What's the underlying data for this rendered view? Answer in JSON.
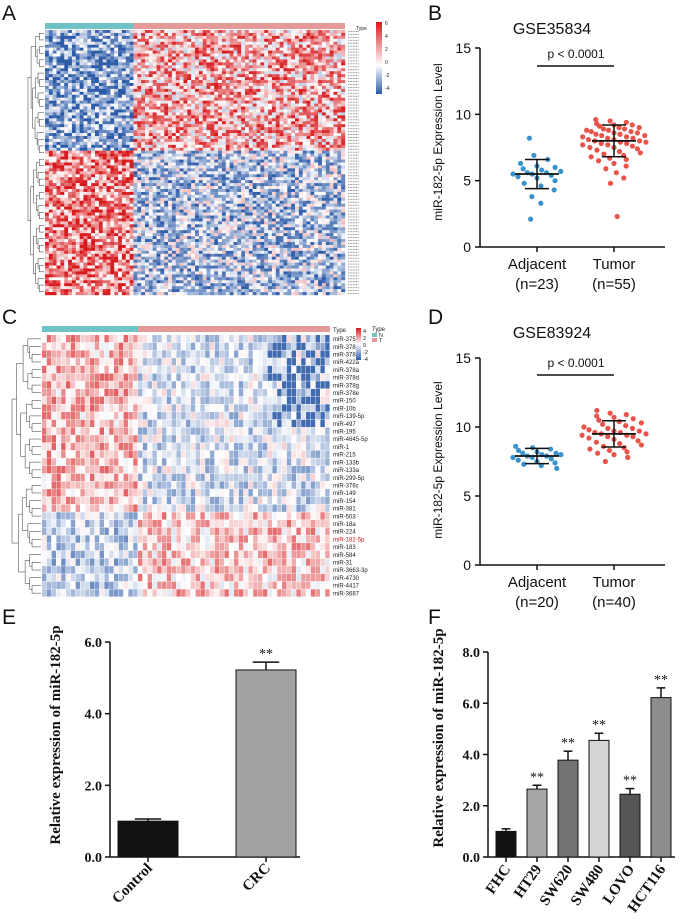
{
  "panel_labels": {
    "a": "A",
    "b": "B",
    "c": "C",
    "d": "D",
    "e": "E",
    "f": "F"
  },
  "colors": {
    "heat_high": "#d7191c",
    "heat_mid": "#ffffff",
    "heat_low": "#2b5aa8",
    "group_normal": "#6fc3c6",
    "group_tumor": "#e59a9a",
    "dot_adjacent": "#3a92cc",
    "dot_tumor": "#e8534a",
    "bar_black": "#111111",
    "highlight_gene": "#d7191c"
  },
  "heatmap_a": {
    "legend_title": "Type",
    "scale_ticks": [
      "6",
      "4",
      "2",
      "0",
      "-2",
      "-4"
    ],
    "n_rows": 90,
    "n_normal": 23,
    "n_tumor": 55
  },
  "heatmap_c": {
    "legend_title": "Type",
    "scale_ticks": [
      "4",
      "2",
      "0",
      "-2",
      "-4"
    ],
    "group_legend_title": "Type",
    "group_legend": [
      "N",
      "T"
    ],
    "n_normal": 20,
    "n_tumor": 40,
    "genes": [
      "miR-375",
      "miR-378f",
      "miR-378i",
      "miR-422a",
      "miR-378a",
      "miR-378d",
      "miR-378g",
      "miR-378e",
      "miR-150",
      "miR-10b",
      "miR-139-5p",
      "miR-497",
      "miR-195",
      "miR-4645-5p",
      "miR-1",
      "miR-215",
      "miR-133b",
      "miR-133a",
      "miR-299-5p",
      "miR-376c",
      "miR-149",
      "miR-154",
      "miR-381",
      "miR-503",
      "miR-18a",
      "miR-224",
      "miR-182-5p",
      "miR-183",
      "miR-584",
      "miR-31",
      "miR-3663-3p",
      "miR-4730",
      "miR-4417",
      "miR-3687"
    ],
    "highlight_gene": "miR-182-5p"
  },
  "chart_data": [
    {
      "id": "B",
      "type": "scatter",
      "title": "GSE35834",
      "ylabel": "miR-182-5p Expression Level",
      "ylim": [
        0,
        15
      ],
      "yticks": [
        "0",
        "5",
        "10",
        "15"
      ],
      "categories": [
        "Adjacent",
        "Tumor"
      ],
      "category_n": [
        "(n=23)",
        "(n=55)"
      ],
      "significance": "p < 0.0001",
      "series": [
        {
          "name": "Adjacent",
          "mean": 5.5,
          "sd": 1.1,
          "values": [
            8.2,
            6.9,
            6.6,
            6.3,
            6.1,
            6.0,
            5.9,
            5.8,
            5.7,
            5.6,
            5.6,
            5.5,
            5.5,
            5.4,
            5.3,
            5.2,
            5.0,
            4.8,
            4.6,
            4.3,
            3.8,
            3.3,
            2.1
          ]
        },
        {
          "name": "Tumor",
          "mean": 8.0,
          "sd": 1.2,
          "values": [
            9.6,
            9.5,
            9.4,
            9.3,
            9.2,
            9.2,
            9.1,
            9.0,
            9.0,
            8.9,
            8.9,
            8.8,
            8.8,
            8.7,
            8.7,
            8.6,
            8.6,
            8.5,
            8.5,
            8.4,
            8.4,
            8.3,
            8.3,
            8.2,
            8.2,
            8.1,
            8.1,
            8.0,
            8.0,
            7.9,
            7.9,
            7.8,
            7.8,
            7.7,
            7.7,
            7.6,
            7.5,
            7.5,
            7.4,
            7.3,
            7.2,
            7.1,
            7.0,
            6.9,
            6.8,
            6.7,
            6.6,
            6.5,
            6.3,
            6.1,
            5.9,
            5.6,
            5.2,
            4.8,
            2.3
          ]
        }
      ]
    },
    {
      "id": "D",
      "type": "scatter",
      "title": "GSE83924",
      "ylabel": "miR-182-5p Expression Level",
      "ylim": [
        0,
        15
      ],
      "yticks": [
        "0",
        "5",
        "10",
        "15"
      ],
      "categories": [
        "Adjacent",
        "Tumor"
      ],
      "category_n": [
        "(n=20)",
        "(n=40)"
      ],
      "significance": "p < 0.0001",
      "series": [
        {
          "name": "Adjacent",
          "mean": 7.9,
          "sd": 0.55,
          "values": [
            8.6,
            8.5,
            8.4,
            8.3,
            8.2,
            8.1,
            8.1,
            8.0,
            8.0,
            7.9,
            7.9,
            7.8,
            7.8,
            7.7,
            7.6,
            7.5,
            7.4,
            7.3,
            7.2,
            7.0
          ]
        },
        {
          "name": "Tumor",
          "mean": 9.5,
          "sd": 0.95,
          "values": [
            11.2,
            11.0,
            10.9,
            10.8,
            10.7,
            10.6,
            10.5,
            10.4,
            10.3,
            10.2,
            10.1,
            10.0,
            9.9,
            9.9,
            9.8,
            9.7,
            9.7,
            9.6,
            9.6,
            9.5,
            9.5,
            9.4,
            9.4,
            9.3,
            9.3,
            9.2,
            9.1,
            9.0,
            8.9,
            8.8,
            8.7,
            8.6,
            8.5,
            8.4,
            8.3,
            8.2,
            8.1,
            8.0,
            7.8,
            7.5
          ]
        }
      ]
    },
    {
      "id": "E",
      "type": "bar",
      "ylabel": "Relative expression of miR-182-5p",
      "ylim": [
        0,
        6
      ],
      "yticks": [
        "0.0",
        "2.0",
        "4.0",
        "6.0"
      ],
      "categories": [
        "Control",
        "CRC"
      ],
      "values": [
        1.0,
        5.22
      ],
      "errors": [
        0.06,
        0.22
      ],
      "bar_colors": [
        "#111111",
        "#a3a3a3"
      ],
      "annotations": [
        "",
        "**"
      ]
    },
    {
      "id": "F",
      "type": "bar",
      "ylabel": "Relative expression of miR-182-5p",
      "ylim": [
        0,
        8
      ],
      "yticks": [
        "0.0",
        "2.0",
        "4.0",
        "6.0",
        "8.0"
      ],
      "categories": [
        "FHC",
        "HT29",
        "SW620",
        "SW480",
        "LOVO",
        "HCT116"
      ],
      "values": [
        1.0,
        2.65,
        3.78,
        4.55,
        2.45,
        6.22
      ],
      "errors": [
        0.1,
        0.15,
        0.35,
        0.28,
        0.22,
        0.38
      ],
      "bar_colors": [
        "#111111",
        "#a6a6a6",
        "#737373",
        "#d4d4d4",
        "#555555",
        "#8d8d8d"
      ],
      "annotations": [
        "",
        "**",
        "**",
        "**",
        "**",
        "**"
      ]
    }
  ]
}
